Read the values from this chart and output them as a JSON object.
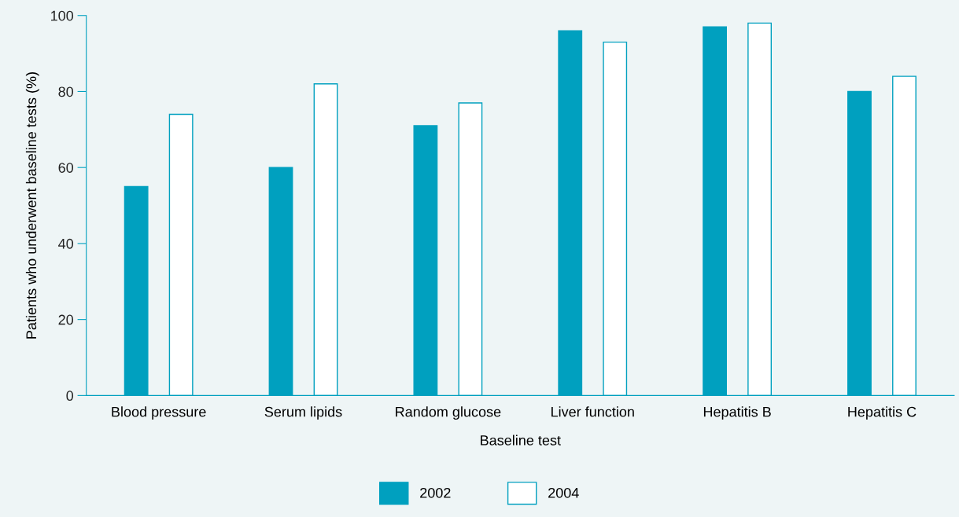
{
  "chart_data": {
    "type": "bar",
    "xlabel": "Baseline test",
    "ylabel": "Patients who underwent baseline tests (%)",
    "categories": [
      "Blood pressure",
      "Serum lipids",
      "Random glucose",
      "Liver function",
      "Hepatitis B",
      "Hepatitis C"
    ],
    "series": [
      {
        "name": "2002",
        "color": "#00a0bf",
        "values": [
          55,
          60,
          71,
          96,
          97,
          80
        ]
      },
      {
        "name": "2004",
        "color": "#ffffff",
        "values": [
          74,
          82,
          77,
          93,
          98,
          84
        ]
      }
    ],
    "ylim": [
      0,
      100
    ],
    "yticks": [
      0,
      20,
      40,
      60,
      80,
      100
    ],
    "grid": false,
    "legend": "bottom"
  }
}
